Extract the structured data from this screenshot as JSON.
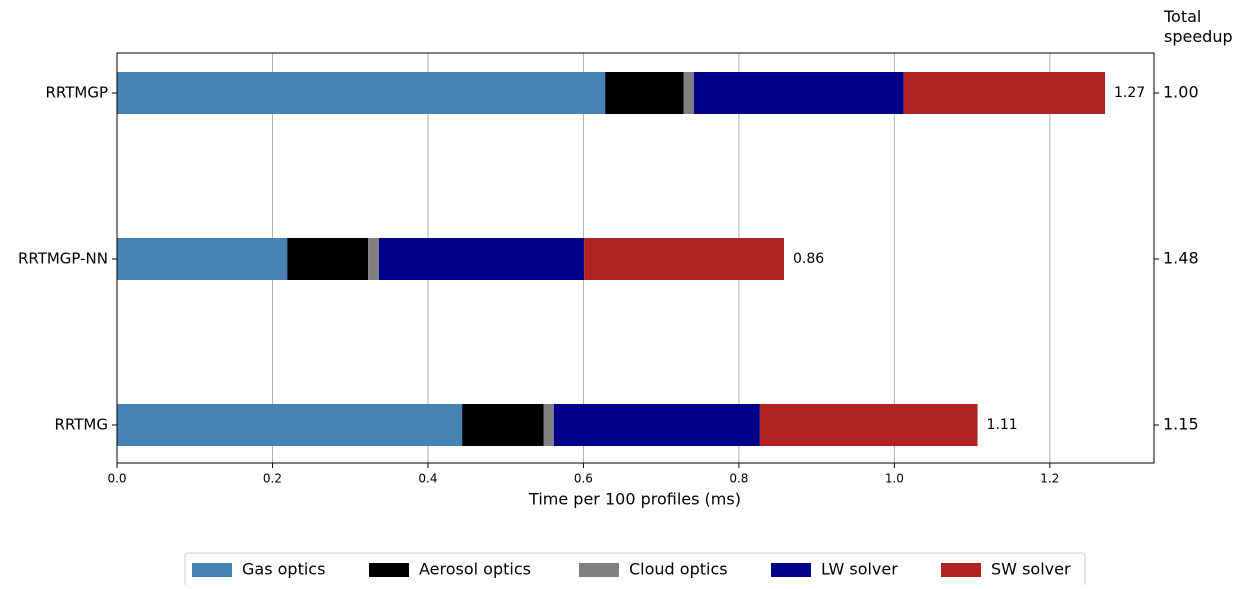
{
  "chart_data": {
    "type": "stacked-barh",
    "categories": [
      "RRTMGP",
      "RRTMGP-NN",
      "RRTMG"
    ],
    "series": [
      {
        "name": "Gas optics",
        "color": "#4682b4",
        "values": [
          0.628,
          0.219,
          0.444
        ]
      },
      {
        "name": "Aerosol optics",
        "color": "#000000",
        "values": [
          0.101,
          0.104,
          0.105
        ]
      },
      {
        "name": "Cloud optics",
        "color": "#808080",
        "values": [
          0.013,
          0.014,
          0.013
        ]
      },
      {
        "name": "LW solver",
        "color": "#00008b",
        "values": [
          0.27,
          0.264,
          0.265
        ]
      },
      {
        "name": "SW solver",
        "color": "#b22222",
        "values": [
          0.259,
          0.257,
          0.28
        ]
      }
    ],
    "totals": [
      1.27,
      0.86,
      1.11
    ],
    "speedup_title": "Total speedup",
    "speedup": [
      1,
      1.48,
      1.15
    ],
    "speedup_labels": [
      "1.00",
      "1.48",
      "1.15"
    ],
    "xlabel": "Time per 100 profiles (ms)",
    "xlim": [
      0,
      1.334
    ],
    "xticks": [
      {
        "value": 0,
        "label": "0.0"
      },
      0.2,
      0.4,
      0.6,
      0.8,
      {
        "value": 1,
        "label": "1.0"
      },
      1.2
    ],
    "grid": true,
    "legend": "bottom"
  }
}
